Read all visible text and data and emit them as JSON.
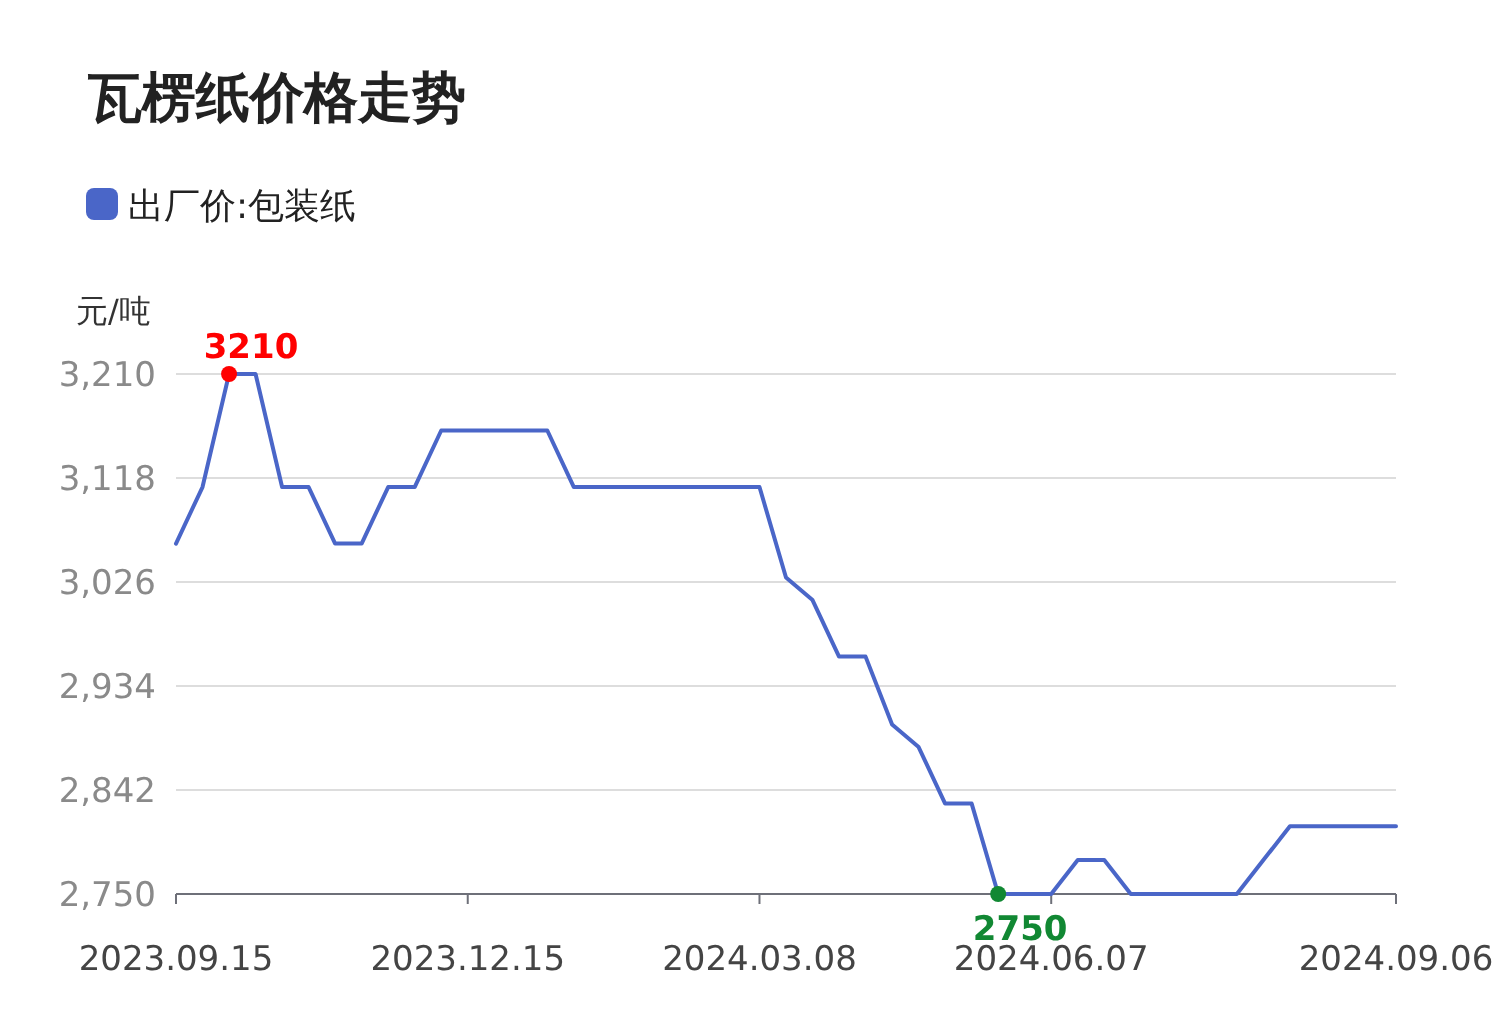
{
  "chart_data": {
    "type": "line",
    "title": "瓦楞纸价格走势",
    "ylabel": "元/吨",
    "categories": [
      "2023.09.15",
      null,
      null,
      null,
      null,
      null,
      null,
      null,
      null,
      null,
      null,
      "2023.12.15",
      null,
      null,
      null,
      null,
      null,
      null,
      null,
      null,
      null,
      null,
      "2024.03.08",
      null,
      null,
      null,
      null,
      null,
      null,
      null,
      null,
      null,
      null,
      "2024.06.07",
      null,
      null,
      null,
      null,
      null,
      null,
      null,
      null,
      null,
      null,
      null,
      null,
      "2024.09.06"
    ],
    "series": [
      {
        "name": "出厂价:包装纸",
        "color": "#4a66c8",
        "values": [
          3060,
          3110,
          3210,
          3210,
          3110,
          3110,
          3060,
          3060,
          3110,
          3110,
          3160,
          3160,
          3160,
          3160,
          3160,
          3110,
          3110,
          3110,
          3110,
          3110,
          3110,
          3110,
          3110,
          3030,
          3010,
          2960,
          2960,
          2900,
          2880,
          2830,
          2830,
          2750,
          2750,
          2750,
          2780,
          2780,
          2750,
          2750,
          2750,
          2750,
          2750,
          2780,
          2810,
          2810,
          2810,
          2810,
          2810
        ]
      }
    ],
    "ylim": [
      2750,
      3210
    ],
    "yticks": [
      {
        "value": 2750,
        "label": "2,750"
      },
      {
        "value": 2842,
        "label": "2,842"
      },
      {
        "value": 2934,
        "label": "2,934"
      },
      {
        "value": 3026,
        "label": "3,026"
      },
      {
        "value": 3118,
        "label": "3,118"
      },
      {
        "value": 3210,
        "label": "3,210"
      }
    ],
    "annotations": [
      {
        "text": "3210",
        "y": 3210
      },
      {
        "text": "2750",
        "y": 2750
      }
    ],
    "grid": "y",
    "legend": "top left",
    "marker": "none",
    "line_style": "solid"
  }
}
